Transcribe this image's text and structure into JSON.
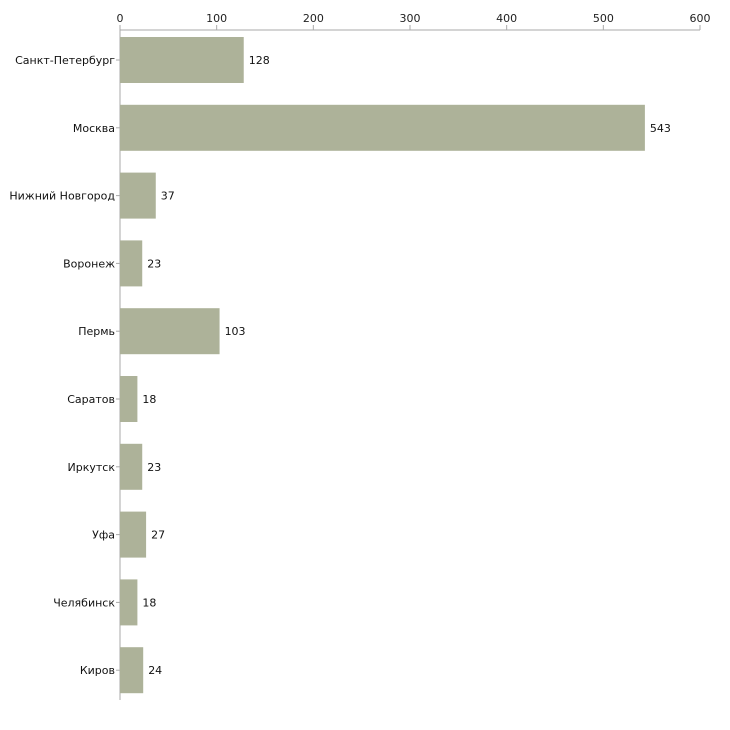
{
  "chart_data": {
    "type": "bar",
    "orientation": "horizontal",
    "title": "",
    "xlabel": "",
    "ylabel": "",
    "xlim": [
      0,
      600
    ],
    "x_ticks": [
      0,
      100,
      200,
      300,
      400,
      500,
      600
    ],
    "x_axis_position": "top",
    "grid": false,
    "categories": [
      "Санкт-Петербург",
      "Москва",
      "Нижний Новгород",
      "Воронеж",
      "Пермь",
      "Саратов",
      "Иркутск",
      "Уфа",
      "Челябинск",
      "Киров"
    ],
    "values": [
      128,
      543,
      37,
      23,
      103,
      18,
      23,
      27,
      18,
      24
    ],
    "colors": {
      "bar": "#adb299",
      "axis": "#aaaaaa"
    }
  }
}
